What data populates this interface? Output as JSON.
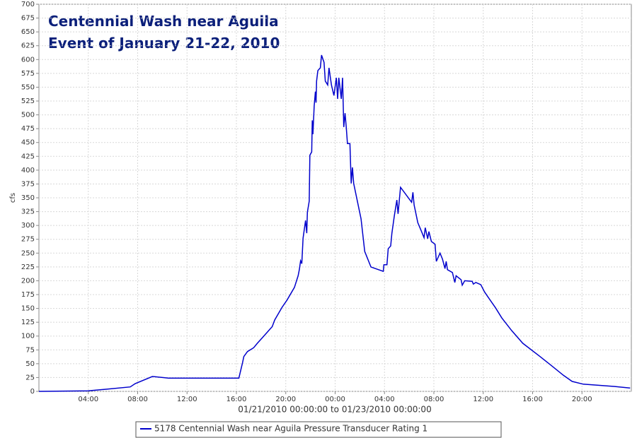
{
  "chart_data": {
    "type": "line",
    "title": "Centennial Wash near Aguila",
    "subtitle": "Event of January 21-22, 2010",
    "x_label": "01/21/2010 00:00:00 to 01/23/2010 00:00:00",
    "y_label": "cfs",
    "x": [
      0,
      4,
      5.5,
      7.4,
      7.8,
      9.2,
      10.5,
      16.2,
      16.5,
      16.6,
      16.9,
      17.4,
      17.7,
      18.1,
      18.5,
      18.9,
      19.1,
      19.7,
      20.1,
      20.7,
      21.0,
      21.1,
      21.2,
      21.3,
      21.4,
      21.6,
      21.7,
      21.75,
      21.9,
      21.95,
      22.1,
      22.15,
      22.2,
      22.3,
      22.4,
      22.45,
      22.5,
      22.6,
      22.8,
      22.9,
      23.1,
      23.2,
      23.4,
      23.5,
      23.7,
      23.9,
      24.1,
      24.2,
      24.3,
      24.5,
      24.6,
      24.7,
      24.8,
      24.9,
      25.0,
      25.2,
      25.3,
      25.4,
      25.5,
      26.1,
      26.4,
      26.9,
      27.9,
      27.95,
      28.2,
      28.3,
      28.5,
      28.6,
      28.8,
      29.0,
      29.1,
      29.3,
      30.2,
      30.3,
      30.4,
      30.7,
      31.0,
      31.2,
      31.3,
      31.5,
      31.6,
      31.8,
      32.1,
      32.2,
      32.5,
      32.7,
      32.9,
      33.0,
      33.1,
      33.5,
      33.7,
      33.8,
      34.2,
      34.3,
      34.5,
      35.1,
      35.2,
      35.4,
      35.8,
      36.1,
      36.5,
      37.0,
      37.5,
      38.3,
      39.2,
      40.6,
      41.5,
      42.5,
      43.2,
      44.1,
      46.6,
      47.9
    ],
    "series": [
      {
        "name": "5178 Centennial Wash near Aguila Pressure Transducer Rating 1",
        "color": "#0000cc",
        "values": [
          0,
          1,
          4,
          8,
          14,
          27,
          24,
          24,
          52,
          63,
          72,
          79,
          87,
          97,
          107,
          117,
          129,
          152,
          165,
          188,
          209,
          220,
          236,
          231,
          277,
          309,
          286,
          324,
          344,
          427,
          433,
          490,
          465,
          516,
          542,
          522,
          561,
          580,
          585,
          608,
          595,
          561,
          554,
          585,
          554,
          535,
          567,
          529,
          567,
          529,
          567,
          478,
          503,
          478,
          448,
          448,
          376,
          405,
          376,
          312,
          253,
          225,
          217,
          229,
          229,
          258,
          263,
          286,
          318,
          346,
          321,
          369,
          342,
          360,
          337,
          305,
          289,
          278,
          296,
          276,
          289,
          271,
          266,
          235,
          250,
          239,
          222,
          235,
          220,
          215,
          197,
          209,
          202,
          192,
          200,
          199,
          194,
          197,
          193,
          180,
          167,
          151,
          133,
          110,
          87,
          63,
          47,
          29,
          18,
          13,
          9,
          6
        ]
      }
    ],
    "xlim": [
      0,
      48
    ],
    "xticks": [
      {
        "value": 4,
        "label": "04:00"
      },
      {
        "value": 8,
        "label": "08:00"
      },
      {
        "value": 12,
        "label": "12:00"
      },
      {
        "value": 16,
        "label": "16:00"
      },
      {
        "value": 20,
        "label": "20:00"
      },
      {
        "value": 24,
        "label": "00:00"
      },
      {
        "value": 28,
        "label": "04:00"
      },
      {
        "value": 32,
        "label": "08:00"
      },
      {
        "value": 36,
        "label": "12:00"
      },
      {
        "value": 40,
        "label": "16:00"
      },
      {
        "value": 44,
        "label": "20:00"
      }
    ],
    "ylim": [
      0,
      700
    ],
    "yticks": [
      0,
      25,
      50,
      75,
      100,
      125,
      150,
      175,
      200,
      225,
      250,
      275,
      300,
      325,
      350,
      375,
      400,
      425,
      450,
      475,
      500,
      525,
      550,
      575,
      600,
      625,
      650,
      675,
      700
    ],
    "grid": true
  }
}
